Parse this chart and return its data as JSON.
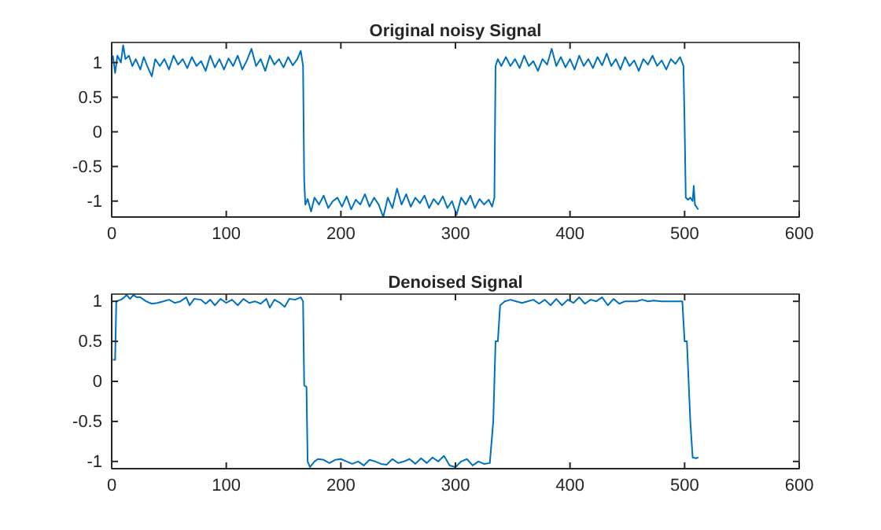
{
  "chart_data": [
    {
      "type": "line",
      "title": "Original noisy Signal",
      "color": "#0072bd",
      "xlim": [
        0,
        600
      ],
      "xticks": [
        0,
        100,
        200,
        300,
        400,
        500,
        600
      ],
      "ylim": [
        -1.23,
        1.29
      ],
      "yticks": [
        -1,
        -0.5,
        0,
        0.5,
        1
      ],
      "x": [
        1,
        3,
        5,
        8,
        10,
        12,
        15,
        18,
        21,
        25,
        28,
        31,
        35,
        38,
        42,
        46,
        50,
        54,
        58,
        62,
        66,
        70,
        74,
        78,
        82,
        86,
        90,
        94,
        98,
        102,
        106,
        110,
        114,
        118,
        122,
        126,
        130,
        134,
        138,
        142,
        146,
        150,
        154,
        158,
        162,
        165,
        167,
        168,
        169,
        171,
        174,
        177,
        181,
        185,
        189,
        193,
        197,
        201,
        205,
        209,
        213,
        217,
        221,
        225,
        229,
        233,
        237,
        241,
        245,
        249,
        253,
        257,
        261,
        265,
        269,
        273,
        277,
        281,
        285,
        289,
        293,
        297,
        301,
        305,
        309,
        313,
        317,
        321,
        325,
        329,
        332,
        334,
        335,
        337,
        340,
        344,
        348,
        352,
        356,
        360,
        364,
        368,
        372,
        376,
        380,
        384,
        388,
        392,
        396,
        400,
        404,
        408,
        412,
        416,
        420,
        424,
        428,
        432,
        436,
        440,
        444,
        448,
        452,
        456,
        460,
        464,
        468,
        472,
        476,
        480,
        484,
        488,
        492,
        496,
        499,
        500,
        501,
        503,
        505,
        507,
        508,
        509,
        511,
        512
      ],
      "values": [
        1.1,
        0.85,
        1.1,
        1.0,
        1.25,
        1.05,
        1.1,
        0.95,
        1.05,
        0.9,
        1.08,
        0.95,
        0.8,
        1.05,
        0.95,
        1.05,
        0.9,
        1.1,
        0.97,
        1.05,
        0.92,
        1.08,
        0.95,
        1.02,
        0.88,
        1.1,
        0.93,
        1.05,
        0.9,
        1.06,
        0.95,
        1.1,
        0.9,
        1.03,
        1.2,
        0.95,
        1.05,
        0.88,
        1.1,
        0.97,
        1.05,
        0.93,
        1.08,
        0.96,
        1.05,
        1.17,
        0.95,
        -0.7,
        -1.05,
        -0.97,
        -1.15,
        -0.95,
        -1.05,
        -0.92,
        -1.1,
        -1.0,
        -0.95,
        -1.08,
        -0.93,
        -1.12,
        -0.98,
        -1.05,
        -0.9,
        -1.08,
        -0.95,
        -1.05,
        -1.23,
        -0.95,
        -1.1,
        -0.82,
        -1.05,
        -0.9,
        -1.08,
        -0.95,
        -1.03,
        -0.92,
        -1.1,
        -0.97,
        -1.05,
        -0.93,
        -1.1,
        -1.0,
        -1.2,
        -0.95,
        -1.05,
        -0.92,
        -1.1,
        -0.97,
        -1.05,
        -0.98,
        -1.08,
        -0.95,
        0.95,
        1.05,
        0.95,
        1.08,
        0.95,
        1.05,
        0.92,
        1.1,
        0.95,
        1.02,
        0.88,
        1.05,
        0.97,
        1.2,
        0.95,
        1.08,
        0.93,
        1.05,
        0.9,
        1.1,
        0.95,
        1.05,
        0.92,
        1.08,
        0.96,
        1.13,
        0.95,
        1.05,
        0.9,
        1.08,
        0.95,
        1.03,
        0.88,
        1.05,
        0.97,
        1.1,
        0.95,
        1.03,
        0.9,
        1.05,
        0.98,
        1.08,
        0.95,
        0.1,
        -0.95,
        -0.98,
        -0.95,
        -1.0,
        -0.78,
        -1.05,
        -1.1,
        -1.12
      ]
    },
    {
      "type": "line",
      "title": "Denoised Signal",
      "color": "#0072bd",
      "xlim": [
        0,
        600
      ],
      "xticks": [
        0,
        100,
        200,
        300,
        400,
        500,
        600
      ],
      "ylim": [
        -1.09,
        1.09
      ],
      "yticks": [
        -1,
        -0.5,
        0,
        0.5,
        1
      ],
      "x": [
        1,
        3,
        4,
        8,
        11,
        13,
        16,
        19,
        22,
        25,
        30,
        35,
        40,
        45,
        50,
        55,
        60,
        65,
        68,
        72,
        78,
        82,
        86,
        90,
        95,
        100,
        105,
        110,
        115,
        120,
        125,
        130,
        135,
        138,
        142,
        147,
        151,
        155,
        160,
        165,
        167,
        168,
        170,
        171,
        173,
        177,
        180,
        185,
        190,
        195,
        200,
        205,
        210,
        215,
        220,
        225,
        230,
        235,
        240,
        245,
        250,
        255,
        260,
        265,
        270,
        275,
        280,
        285,
        290,
        295,
        300,
        305,
        310,
        315,
        320,
        325,
        330,
        333,
        335,
        337,
        339,
        343,
        348,
        353,
        358,
        363,
        368,
        373,
        378,
        383,
        388,
        393,
        398,
        403,
        408,
        413,
        418,
        423,
        428,
        433,
        438,
        443,
        448,
        453,
        458,
        463,
        468,
        473,
        480,
        490,
        498,
        500,
        502,
        505,
        507,
        510,
        512
      ],
      "values": [
        0.27,
        0.27,
        1.0,
        1.02,
        1.05,
        1.08,
        1.03,
        1.08,
        1.05,
        1.05,
        1.0,
        0.97,
        0.98,
        1.0,
        1.02,
        0.98,
        1.0,
        1.05,
        0.95,
        1.03,
        1.02,
        0.97,
        1.02,
        0.95,
        1.03,
        0.98,
        1.02,
        0.95,
        1.03,
        0.98,
        1.0,
        0.97,
        1.03,
        0.92,
        1.02,
        0.98,
        0.93,
        1.03,
        1.02,
        1.05,
        1.0,
        -0.05,
        -0.07,
        -1.0,
        -1.07,
        -1.0,
        -0.97,
        -0.98,
        -1.02,
        -0.98,
        -0.97,
        -1.0,
        -1.03,
        -1.0,
        -1.05,
        -0.98,
        -1.0,
        -1.03,
        -1.04,
        -0.97,
        -1.02,
        -1.0,
        -0.97,
        -1.03,
        -0.96,
        -1.02,
        -0.95,
        -1.0,
        -0.93,
        -1.05,
        -1.07,
        -1.0,
        -0.97,
        -1.05,
        -1.0,
        -1.03,
        -1.02,
        -0.5,
        0.5,
        0.5,
        0.95,
        1.0,
        1.02,
        1.0,
        0.98,
        1.0,
        1.02,
        0.97,
        1.02,
        0.95,
        1.03,
        0.95,
        1.02,
        0.98,
        1.05,
        0.97,
        1.02,
        1.0,
        1.05,
        0.95,
        1.03,
        0.97,
        1.0,
        1.0,
        1.0,
        1.02,
        1.0,
        1.01,
        1.0,
        1.0,
        1.0,
        0.5,
        0.5,
        -0.5,
        -0.95,
        -0.96,
        -0.95
      ]
    }
  ]
}
